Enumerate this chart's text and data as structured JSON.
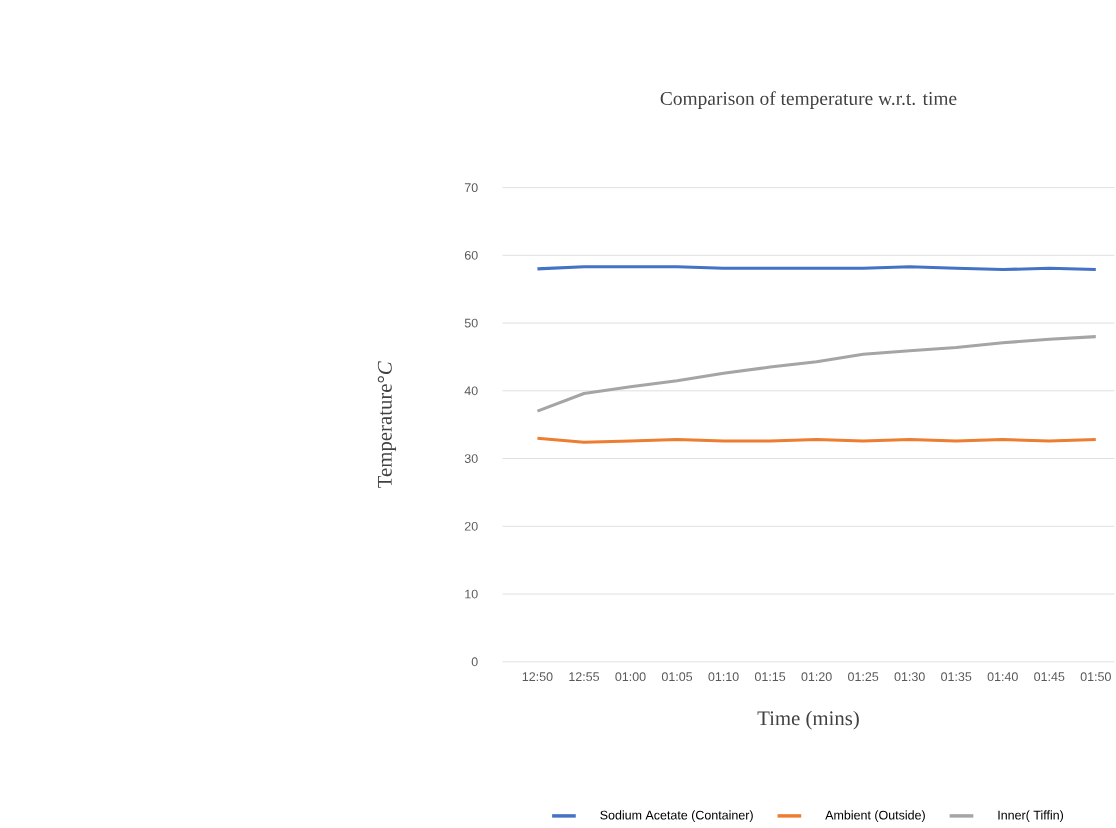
{
  "chart_data": {
    "type": "line",
    "title": "Comparison of temperature w.r.t. time",
    "xlabel": "Time (mins)",
    "ylabel": "Temperature°*C*",
    "categories": [
      "12:50",
      "12:55",
      "01:00",
      "01:05",
      "01:10",
      "01:15",
      "01:20",
      "01:25",
      "01:30",
      "01:35",
      "01:40",
      "01:45",
      "01:50"
    ],
    "series": [
      {
        "name": "Sodium Acetate (Container)",
        "color": "#4472c4",
        "values": [
          58,
          58.3,
          58.3,
          58.3,
          58.1,
          58.1,
          58.1,
          58.1,
          58.3,
          58.1,
          57.9,
          58.1,
          57.9
        ]
      },
      {
        "name": "Ambient (Outside)",
        "color": "#ed7d31",
        "values": [
          33,
          32.4,
          32.6,
          32.8,
          32.6,
          32.6,
          32.8,
          32.6,
          32.8,
          32.6,
          32.8,
          32.6,
          32.8
        ]
      },
      {
        "name": "Inner( Tiffin)",
        "color": "#a5a5a5",
        "values": [
          37,
          39.6,
          40.6,
          41.5,
          42.6,
          43.5,
          44.3,
          45.4,
          45.9,
          46.4,
          47.1,
          47.6,
          48
        ]
      }
    ],
    "ylim": [
      0,
      70
    ],
    "yticks": [
      0,
      10,
      20,
      30,
      40,
      50,
      60,
      70
    ],
    "grid": "y",
    "legend": "bottom"
  }
}
